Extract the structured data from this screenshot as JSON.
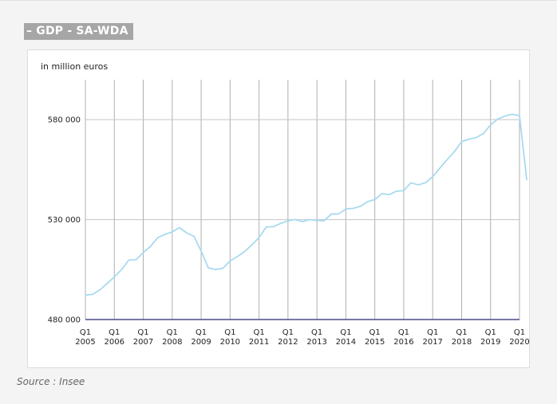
{
  "header": {
    "title": "– GDP - SA-WDA"
  },
  "footer": {
    "source": "Source : Insee"
  },
  "colors": {
    "line": "#a8daf0",
    "baseline": "#4b4b8c",
    "grid": "#b0b0b0",
    "title_bg": "#a6a6a6"
  },
  "chart_data": {
    "type": "line",
    "title": "",
    "ylabel": "in million euros",
    "xlabel": "",
    "ylim": [
      480000,
      600000
    ],
    "yticks": [
      480000,
      530000,
      580000
    ],
    "ytick_labels": [
      "480 000",
      "530 000",
      "580 000"
    ],
    "x_range": [
      "2005-Q1",
      "2020-Q1"
    ],
    "xtick_labels": [
      {
        "q": "Q1",
        "year": "2005"
      },
      {
        "q": "Q1",
        "year": "2006"
      },
      {
        "q": "Q1",
        "year": "2007"
      },
      {
        "q": "Q1",
        "year": "2008"
      },
      {
        "q": "Q1",
        "year": "2009"
      },
      {
        "q": "Q1",
        "year": "2010"
      },
      {
        "q": "Q1",
        "year": "2011"
      },
      {
        "q": "Q1",
        "year": "2012"
      },
      {
        "q": "Q1",
        "year": "2013"
      },
      {
        "q": "Q1",
        "year": "2014"
      },
      {
        "q": "Q1",
        "year": "2015"
      },
      {
        "q": "Q1",
        "year": "2016"
      },
      {
        "q": "Q1",
        "year": "2017"
      },
      {
        "q": "Q1",
        "year": "2018"
      },
      {
        "q": "Q1",
        "year": "2019"
      },
      {
        "q": "Q1",
        "year": "2020"
      }
    ],
    "grid": true,
    "series": [
      {
        "values": [
          492200,
          492600,
          494800,
          498000,
          501300,
          505000,
          509800,
          509900,
          513500,
          516600,
          521000,
          522600,
          523800,
          526000,
          523300,
          521700,
          514200,
          505800,
          505000,
          505600,
          509300,
          511500,
          514000,
          517300,
          521000,
          526300,
          526500,
          528100,
          529400,
          530100,
          529000,
          530000,
          529600,
          529400,
          532800,
          532800,
          535300,
          535600,
          536600,
          539000,
          540000,
          543000,
          542500,
          544200,
          544500,
          548400,
          547400,
          548400,
          551500,
          555800,
          560000,
          564000,
          569000,
          570200,
          571000,
          573000,
          577400,
          580300,
          581800,
          582700,
          582000,
          550000
        ]
      }
    ]
  }
}
